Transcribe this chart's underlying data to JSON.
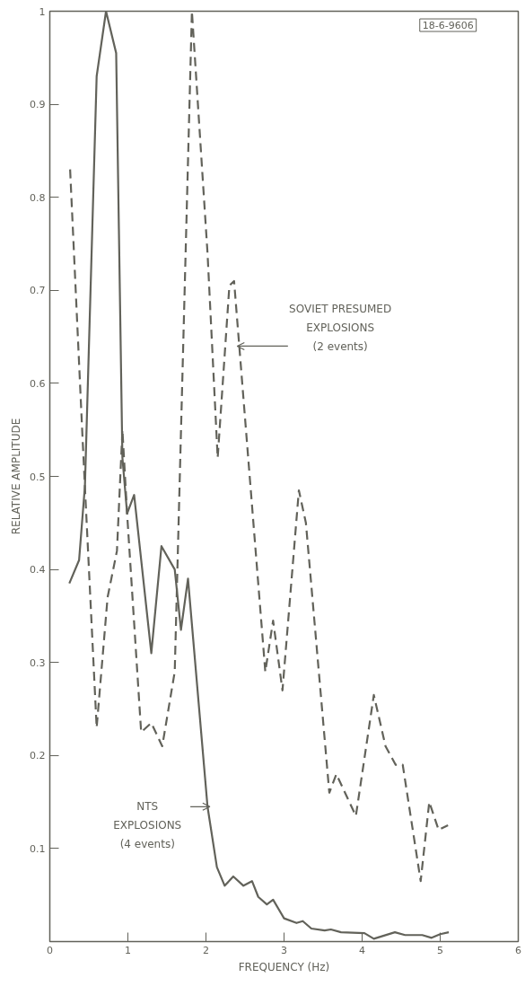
{
  "chart_data": {
    "type": "line",
    "xlabel": "FREQUENCY (Hz)",
    "ylabel": "RELATIVE AMPLITUDE",
    "xlim": [
      0,
      6
    ],
    "ylim": [
      0,
      1
    ],
    "xticks": [
      0,
      1,
      2,
      3,
      4,
      5,
      6
    ],
    "yticks": [
      0.1,
      0.2,
      0.3,
      0.4,
      0.5,
      0.6,
      0.7,
      0.8,
      0.9,
      1
    ],
    "marker": "none",
    "series": [
      {
        "color": "#62625a",
        "line_style": "solid",
        "x": [
          0.25,
          0.375,
          0.45,
          0.6,
          0.72,
          0.85,
          0.93,
          0.99,
          1.08,
          1.3,
          1.43,
          1.6,
          1.68,
          1.77,
          2.02,
          2.14,
          2.24,
          2.35,
          2.48,
          2.59,
          2.67,
          2.78,
          2.86,
          3.0,
          3.16,
          3.24,
          3.35,
          3.52,
          3.6,
          3.73,
          4.03,
          4.15,
          4.42,
          4.55,
          4.77,
          4.89,
          5.0,
          5.11
        ],
        "values": [
          0.385,
          0.41,
          0.49,
          0.93,
          1.0,
          0.955,
          0.52,
          0.46,
          0.48,
          0.31,
          0.425,
          0.4,
          0.335,
          0.39,
          0.145,
          0.08,
          0.06,
          0.07,
          0.06,
          0.065,
          0.048,
          0.04,
          0.045,
          0.025,
          0.02,
          0.022,
          0.014,
          0.012,
          0.013,
          0.01,
          0.009,
          0.003,
          0.01,
          0.007,
          0.007,
          0.004,
          0.008,
          0.01
        ]
      },
      {
        "color": "#62625a",
        "line_style": "dashed",
        "x": [
          0.26,
          0.42,
          0.6,
          0.74,
          0.86,
          0.93,
          0.99,
          1.17,
          1.3,
          1.44,
          1.6,
          1.82,
          2.02,
          2.15,
          2.3,
          2.36,
          2.76,
          2.86,
          2.98,
          3.19,
          3.28,
          3.58,
          3.67,
          3.92,
          4.15,
          4.3,
          4.43,
          4.52,
          4.75,
          4.86,
          4.98,
          5.1
        ],
        "values": [
          0.83,
          0.54,
          0.23,
          0.37,
          0.42,
          0.55,
          0.46,
          0.225,
          0.235,
          0.21,
          0.29,
          1.0,
          0.74,
          0.52,
          0.705,
          0.71,
          0.29,
          0.345,
          0.27,
          0.485,
          0.45,
          0.16,
          0.18,
          0.135,
          0.265,
          0.21,
          0.19,
          0.19,
          0.065,
          0.15,
          0.12,
          0.125
        ]
      }
    ],
    "annotations": [
      {
        "text": "SOVIET PRESUMED\nEXPLOSIONS\n(2 events)",
        "x": 2.4,
        "y": 0.64
      },
      {
        "text": "NTS\nEXPLOSIONS\n(4 events)",
        "x": 2.05,
        "y": 0.145
      },
      "18-6-9606"
    ]
  }
}
